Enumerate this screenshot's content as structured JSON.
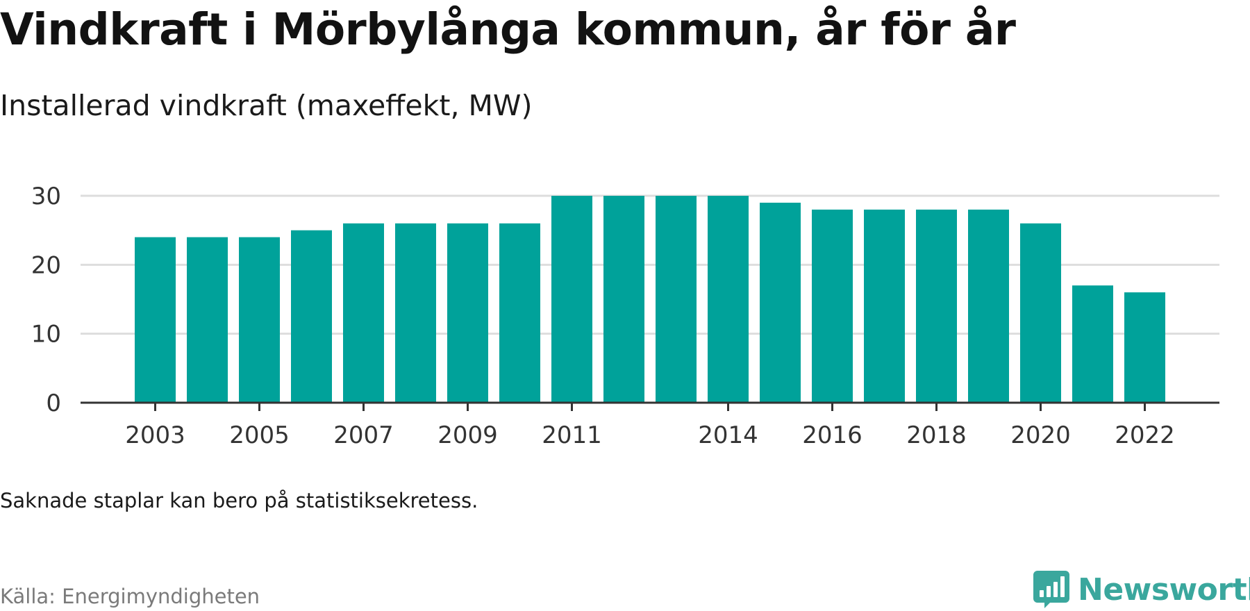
{
  "title": "Vindkraft i Mörbylånga kommun, år för år",
  "subtitle": "Installerad vindkraft (maxeffekt, MW)",
  "note": "Saknade staplar kan bero på statistiksekretess.",
  "source": "Källa: Energimyndigheten",
  "brand": {
    "name": "Newsworthy",
    "logo_icon": "bar-chart-speech-bubble-icon",
    "color": "#3aa79d"
  },
  "colors": {
    "bar": "#00a29a",
    "grid": "#dddddd",
    "axis": "#333333"
  },
  "chart_data": {
    "type": "bar",
    "categories": [
      "2003",
      "2004",
      "2005",
      "2006",
      "2007",
      "2008",
      "2009",
      "2010",
      "2011",
      "2012",
      "2013",
      "2014",
      "2015",
      "2016",
      "2017",
      "2018",
      "2019",
      "2020",
      "2021",
      "2022"
    ],
    "values": [
      24,
      24,
      24,
      25,
      26,
      26,
      26,
      26,
      30,
      30,
      30,
      30,
      29,
      28,
      28,
      28,
      28,
      26,
      17,
      16
    ],
    "x_tick_labels": [
      "2003",
      "2005",
      "2007",
      "2009",
      "2011",
      "2014",
      "2016",
      "2018",
      "2020",
      "2022"
    ],
    "y_ticks": [
      0,
      10,
      20,
      30
    ],
    "ylim": [
      0,
      30
    ],
    "grid": true,
    "xlabel": "",
    "ylabel": ""
  }
}
